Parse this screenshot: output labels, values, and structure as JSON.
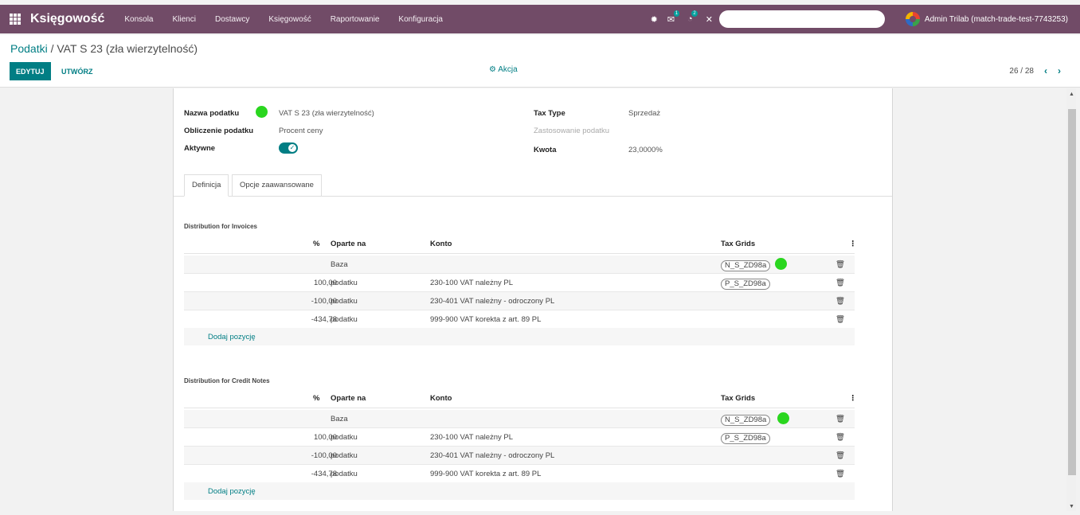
{
  "navbar": {
    "app_name": "Księgowość",
    "menu": [
      "Konsola",
      "Klienci",
      "Dostawcy",
      "Księgowość",
      "Raportowanie",
      "Konfiguracja"
    ],
    "messages_badge": "1",
    "activities_badge": "2",
    "user": "Admin Trilab (match-trade-test-7743253)"
  },
  "breadcrumb": {
    "parent": "Podatki",
    "separator": " / ",
    "current": "VAT S 23 (zła wierzytelność)"
  },
  "toolbar": {
    "edit_label": "EDYTUJ",
    "create_label": "UTWÓRZ",
    "action_label": "Akcja",
    "pager": "26 / 28"
  },
  "form": {
    "tax_name_label": "Nazwa podatku",
    "tax_name_value": "VAT S 23 (zła wierzytelność)",
    "computation_label": "Obliczenie podatku",
    "computation_value": "Procent ceny",
    "active_label": "Aktywne",
    "active": true,
    "tax_type_label": "Tax Type",
    "tax_type_value": "Sprzedaż",
    "tax_scope_label": "Zastosowanie podatku",
    "amount_label": "Kwota",
    "amount_value": "23,0000%"
  },
  "tabs": [
    {
      "label": "Definicja",
      "active": true
    },
    {
      "label": "Opcje zaawansowane",
      "active": false
    }
  ],
  "columns": {
    "percent": "%",
    "based_on": "Oparte na",
    "account": "Konto",
    "tax_grids": "Tax Grids"
  },
  "add_line_label": "Dodaj pozycję",
  "invoices": {
    "title": "Distribution for Invoices",
    "rows": [
      {
        "percent": "",
        "based_on": "Baza",
        "account": "",
        "grid": "N_S_ZD98a"
      },
      {
        "percent": "100,00",
        "based_on": "podatku",
        "account": "230-100 VAT należny PL",
        "grid": "P_S_ZD98a"
      },
      {
        "percent": "-100,00",
        "based_on": "podatku",
        "account": "230-401 VAT należny - odroczony PL",
        "grid": ""
      },
      {
        "percent": "-434,78",
        "based_on": "podatku",
        "account": "999-900 VAT korekta z art. 89 PL",
        "grid": ""
      }
    ]
  },
  "credit_notes": {
    "title": "Distribution for Credit Notes",
    "rows": [
      {
        "percent": "",
        "based_on": "Baza",
        "account": "",
        "grid": "N_S_ZD98a"
      },
      {
        "percent": "100,00",
        "based_on": "podatku",
        "account": "230-100 VAT należny PL",
        "grid": "P_S_ZD98a"
      },
      {
        "percent": "-100,00",
        "based_on": "podatku",
        "account": "230-401 VAT należny - odroczony PL",
        "grid": ""
      },
      {
        "percent": "-434,78",
        "based_on": "podatku",
        "account": "999-900 VAT korekta z art. 89 PL",
        "grid": ""
      }
    ]
  },
  "colors": {
    "navbar": "#714b67",
    "primary": "#017e84",
    "indicator": "#2ad61f"
  }
}
